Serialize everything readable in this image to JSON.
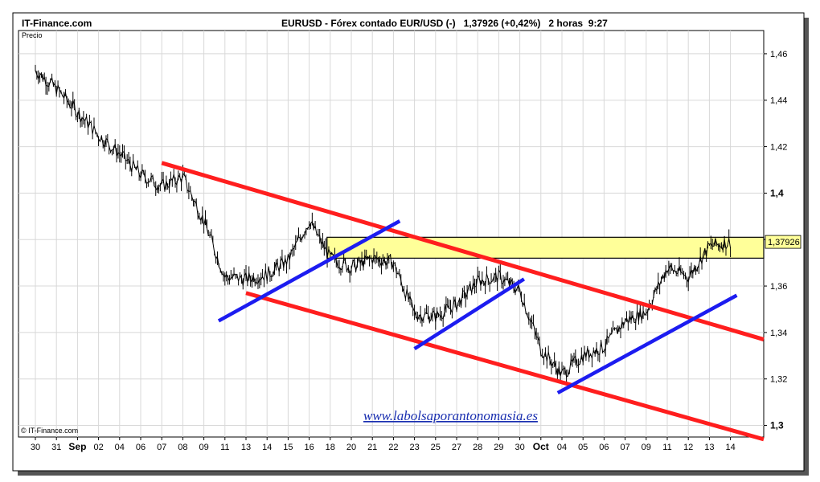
{
  "header": {
    "source": "IT-Finance.com",
    "title": "EURUSD - Fórex contado EUR/USD (-)   1,37926 (+0,42%)   2 horas  9:27"
  },
  "panel": {
    "ylabel": "Precio",
    "copyright": "© IT-Finance.com",
    "watermark": "www.labolsaporantonomasia.es"
  },
  "chart_data": {
    "type": "line",
    "title": "EURUSD - Fórex contado EUR/USD (-)",
    "last_price": "1,37926",
    "change": "+0,42%",
    "timeframe": "2 horas",
    "time": "9:27",
    "ylim": [
      1.295,
      1.47
    ],
    "y_ticks": [
      "1,46",
      "1,44",
      "1,42",
      "1,4",
      "1,38",
      "1,36",
      "1,34",
      "1,32",
      "1,3"
    ],
    "y_tick_values": [
      1.46,
      1.44,
      1.42,
      1.4,
      1.38,
      1.36,
      1.34,
      1.32,
      1.3
    ],
    "bold_y_ticks": [
      "1,4",
      "1,3"
    ],
    "x_ticks": [
      "30",
      "31",
      "Sep",
      "02",
      "04",
      "06",
      "07",
      "08",
      "09",
      "11",
      "13",
      "14",
      "15",
      "16",
      "18",
      "20",
      "21",
      "22",
      "23",
      "25",
      "27",
      "28",
      "29",
      "30",
      "Oct",
      "04",
      "05",
      "06",
      "07",
      "09",
      "11",
      "12",
      "13",
      "14"
    ],
    "bold_x_ticks": [
      "Sep",
      "Oct"
    ],
    "series": [
      {
        "x": [
          0,
          1,
          2,
          3,
          4,
          5,
          6,
          7,
          8,
          9,
          10,
          11,
          12,
          13,
          14,
          15,
          16,
          17,
          18,
          19,
          20,
          21,
          22,
          23,
          24,
          25,
          26,
          27,
          28,
          29,
          30,
          31,
          32,
          33
        ],
        "values": [
          1.453,
          1.445,
          1.435,
          1.425,
          1.417,
          1.408,
          1.403,
          1.407,
          1.388,
          1.364,
          1.363,
          1.365,
          1.371,
          1.388,
          1.372,
          1.368,
          1.372,
          1.37,
          1.348,
          1.347,
          1.352,
          1.362,
          1.364,
          1.358,
          1.333,
          1.322,
          1.33,
          1.334,
          1.345,
          1.349,
          1.368,
          1.364,
          1.377,
          1.379
        ]
      }
    ],
    "annotations": {
      "resistance_band": [
        1.372,
        1.381
      ],
      "channel_lines_red": [
        {
          "from": [
            "07",
            1.413
          ],
          "to": [
            "14",
            1.337
          ]
        },
        {
          "from": [
            "13",
            1.357
          ],
          "to": [
            "14",
            1.294
          ]
        }
      ],
      "trend_lines_blue": [
        {
          "from": [
            "11",
            1.345
          ],
          "to": [
            "22",
            1.388
          ]
        },
        {
          "from": [
            "23",
            1.333
          ],
          "to": [
            "30",
            1.363
          ]
        },
        {
          "from": [
            "04",
            1.314
          ],
          "to": [
            "14",
            1.356
          ]
        }
      ]
    },
    "colors": {
      "price": "#000000",
      "channel": "#ff1e1e",
      "trend": "#1c1cf0",
      "band_fill": "#ffff99",
      "grid": "#d8d8d8",
      "frame": "#000000"
    },
    "grid": true
  }
}
